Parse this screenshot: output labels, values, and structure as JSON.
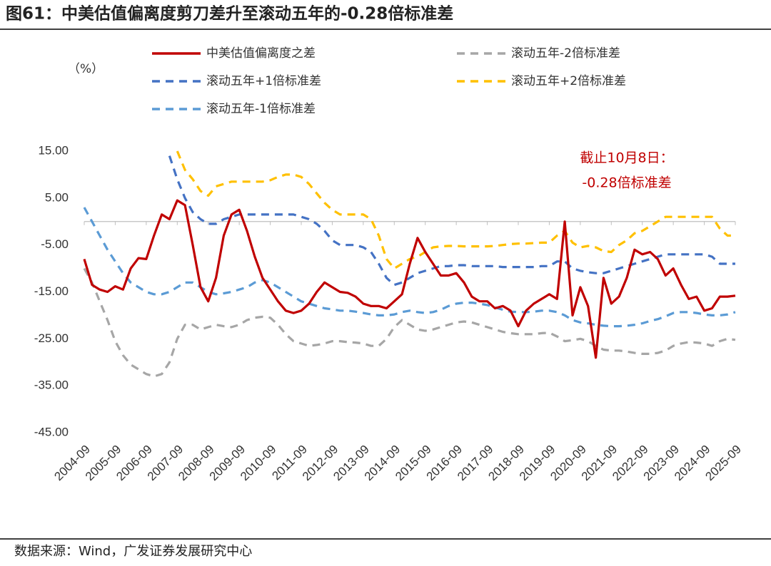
{
  "title": "图61：中美估值偏离度剪刀差升至滚动五年的-0.28倍标准差",
  "source": "数据来源：Wind，广发证券发展研究中心",
  "chart_data": {
    "type": "line",
    "y_unit": "（%）",
    "annotation": [
      "截止10月8日：",
      "-0.28倍标准差"
    ],
    "annotation_color": "#c00000",
    "ylim": [
      -45,
      15
    ],
    "yticks": [
      {
        "value": 15,
        "label": "15.00"
      },
      {
        "value": 5,
        "label": "5.00"
      },
      {
        "value": -5,
        "label": "-5.00"
      },
      {
        "value": -15,
        "label": "-15.00"
      },
      {
        "value": -25,
        "label": "-25.00"
      },
      {
        "value": -35,
        "label": "-35.00"
      },
      {
        "value": -45,
        "label": "-45.00"
      }
    ],
    "xlim": [
      "2004-09",
      "2025-09"
    ],
    "xticks": [
      "2004-09",
      "2005-09",
      "2006-09",
      "2007-09",
      "2008-09",
      "2009-09",
      "2010-09",
      "2011-09",
      "2012-09",
      "2013-09",
      "2014-09",
      "2015-09",
      "2016-09",
      "2017-09",
      "2018-09",
      "2019-09",
      "2020-09",
      "2021-09",
      "2022-09",
      "2023-09",
      "2024-09",
      "2025-09"
    ],
    "x": [
      "2004-09",
      "2004-12",
      "2005-03",
      "2005-06",
      "2005-09",
      "2005-12",
      "2006-03",
      "2006-06",
      "2006-09",
      "2006-12",
      "2007-03",
      "2007-06",
      "2007-09",
      "2007-12",
      "2008-03",
      "2008-06",
      "2008-09",
      "2008-12",
      "2009-03",
      "2009-06",
      "2009-09",
      "2009-12",
      "2010-03",
      "2010-06",
      "2010-09",
      "2010-12",
      "2011-03",
      "2011-06",
      "2011-09",
      "2011-12",
      "2012-03",
      "2012-06",
      "2012-09",
      "2012-12",
      "2013-03",
      "2013-06",
      "2013-09",
      "2013-12",
      "2014-03",
      "2014-06",
      "2014-09",
      "2014-12",
      "2015-03",
      "2015-06",
      "2015-09",
      "2015-12",
      "2016-03",
      "2016-06",
      "2016-09",
      "2016-12",
      "2017-03",
      "2017-06",
      "2017-09",
      "2017-12",
      "2018-03",
      "2018-06",
      "2018-09",
      "2018-12",
      "2019-03",
      "2019-06",
      "2019-09",
      "2019-12",
      "2020-03",
      "2020-06",
      "2020-09",
      "2020-12",
      "2021-03",
      "2021-06",
      "2021-09",
      "2021-12",
      "2022-03",
      "2022-06",
      "2022-09",
      "2022-12",
      "2023-03",
      "2023-06",
      "2023-09",
      "2023-12",
      "2024-03",
      "2024-06",
      "2024-09",
      "2024-12",
      "2025-03",
      "2025-06",
      "2025-09"
    ],
    "series": [
      {
        "name": "中美估值偏离度之差",
        "color": "#c00000",
        "dashed": false,
        "values": [
          -8,
          -13.5,
          -14.5,
          -15,
          -13.8,
          -14.5,
          -10,
          -7.8,
          -8,
          -3,
          1.5,
          0.5,
          4.5,
          3.5,
          -5,
          -14,
          -17,
          -12,
          -3,
          1.5,
          2.5,
          -2,
          -7.5,
          -12,
          -14.5,
          -17,
          -19,
          -19.5,
          -19,
          -17.5,
          -15,
          -13,
          -14,
          -15,
          -15.2,
          -16,
          -17.5,
          -18,
          -18,
          -18.5,
          -17,
          -15.5,
          -9,
          -3.5,
          -6.5,
          -9,
          -11.5,
          -11.5,
          -11,
          -13,
          -16,
          -17,
          -17,
          -18.5,
          -18,
          -19,
          -22.3,
          -19,
          -17.5,
          -16.5,
          -15.5,
          -16.5,
          0,
          -20,
          -14,
          -18,
          -29,
          -12,
          -17.5,
          -16,
          -12,
          -6,
          -7,
          -6.5,
          -8,
          -11.5,
          -10,
          -13.5,
          -16.5,
          -16,
          -19,
          -18.5,
          -16,
          -16,
          -15.8
        ]
      },
      {
        "name": "滚动五年-2倍标准差",
        "color": "#a6a6a6",
        "dashed": true,
        "values": [
          -10,
          -13,
          -17,
          -21,
          -25.5,
          -28.5,
          -30.5,
          -31.5,
          -32.5,
          -33,
          -32.5,
          -30,
          -25,
          -22,
          -22,
          -23,
          -22.5,
          -22,
          -22.3,
          -22.5,
          -22,
          -21,
          -20.5,
          -20.3,
          -20.5,
          -22,
          -24,
          -25.5,
          -26,
          -26.5,
          -26.3,
          -26,
          -25.5,
          -25.5,
          -25.7,
          -25.8,
          -26,
          -26.5,
          -26.5,
          -25,
          -22.5,
          -21,
          -22,
          -23,
          -23.3,
          -23,
          -22.5,
          -22,
          -21.5,
          -21.3,
          -21.5,
          -22,
          -22.5,
          -23,
          -23.5,
          -23.8,
          -24,
          -24,
          -24,
          -23.8,
          -23.7,
          -24.5,
          -25.5,
          -25.3,
          -25,
          -25.5,
          -26.5,
          -27.3,
          -27.5,
          -27.5,
          -27.7,
          -28,
          -28.2,
          -28.2,
          -28,
          -27.5,
          -26.5,
          -26,
          -25.7,
          -25.8,
          -26,
          -26.5,
          -25.5,
          -25,
          -25.2
        ]
      },
      {
        "name": "滚动五年+1倍标准差",
        "color": "#4472c4",
        "dashed": true,
        "values": [
          null,
          null,
          null,
          null,
          null,
          null,
          null,
          null,
          null,
          null,
          null,
          14,
          9,
          5,
          2,
          0.5,
          -0.5,
          -0.5,
          0.5,
          1,
          1.5,
          1.5,
          1.5,
          1.5,
          1.5,
          1.5,
          1.5,
          1.5,
          1,
          0.5,
          -0.5,
          -2,
          -4,
          -5,
          -5,
          -5,
          -5.5,
          -6.5,
          -9,
          -12,
          -13.5,
          -13,
          -12,
          -11,
          -10.5,
          -10,
          -9.5,
          -9.5,
          -9.3,
          -9.3,
          -9.5,
          -9.5,
          -9.5,
          -9.5,
          -9.7,
          -9.7,
          -9.7,
          -9.7,
          -9.7,
          -9.5,
          -9.5,
          -8.5,
          -8.5,
          -10,
          -10.5,
          -10.8,
          -11,
          -11,
          -10.5,
          -10,
          -9.5,
          -9,
          -8.5,
          -8,
          -7.5,
          -7,
          -7,
          -7,
          -7,
          -7,
          -7,
          -7.5,
          -9,
          -9,
          -9
        ]
      },
      {
        "name": "滚动五年+2倍标准差",
        "color": "#ffc000",
        "dashed": true,
        "values": [
          null,
          null,
          null,
          null,
          null,
          null,
          null,
          null,
          null,
          null,
          null,
          null,
          15,
          11,
          9,
          6.5,
          5.5,
          7.5,
          8,
          8.5,
          8.5,
          8.5,
          8.5,
          8.5,
          8.8,
          9.5,
          10,
          10,
          9.5,
          8,
          6,
          4,
          2.5,
          1.5,
          1.5,
          1.5,
          1.5,
          0.5,
          -3,
          -8,
          -10,
          -9,
          -8,
          -7.5,
          -6.5,
          -5.5,
          -5.3,
          -5.2,
          -5.2,
          -5.3,
          -5.3,
          -5.3,
          -5.3,
          -5.2,
          -5,
          -4.8,
          -4.7,
          -4.7,
          -4.6,
          -4.5,
          -4.5,
          -3,
          -2,
          -4.5,
          -5.5,
          -5.2,
          -5.5,
          -6.3,
          -6.5,
          -5,
          -4,
          -2.5,
          -2,
          -1,
          0,
          1,
          1,
          1,
          1,
          1,
          1,
          1,
          -1.5,
          -3,
          -3
        ]
      },
      {
        "name": "滚动五年-1倍标准差",
        "color": "#5b9bd5",
        "dashed": true,
        "values": [
          3,
          0,
          -3,
          -6,
          -8.5,
          -11,
          -13,
          -14,
          -15,
          -15.5,
          -15.5,
          -15,
          -14,
          -13,
          -13,
          -14,
          -15,
          -15.5,
          -15.3,
          -15,
          -14.5,
          -14,
          -13,
          -12.5,
          -13,
          -14,
          -15,
          -16,
          -17,
          -17.5,
          -18,
          -18.5,
          -18.7,
          -19,
          -19,
          -19.2,
          -19.5,
          -19.8,
          -20,
          -20,
          -19.8,
          -19.3,
          -19,
          -19.3,
          -19.5,
          -19.3,
          -18.8,
          -18,
          -17.5,
          -17.3,
          -17.3,
          -17.5,
          -17.8,
          -18.3,
          -18.8,
          -19.2,
          -19.3,
          -19.3,
          -19.2,
          -19,
          -19,
          -19.3,
          -20,
          -21,
          -21.5,
          -21.7,
          -22,
          -22.2,
          -22.3,
          -22.3,
          -22.2,
          -22,
          -21.7,
          -21.2,
          -20.8,
          -20.2,
          -19.5,
          -19.3,
          -19.3,
          -19.5,
          -19.8,
          -20,
          -20,
          -19.8,
          -19.3
        ]
      }
    ]
  }
}
